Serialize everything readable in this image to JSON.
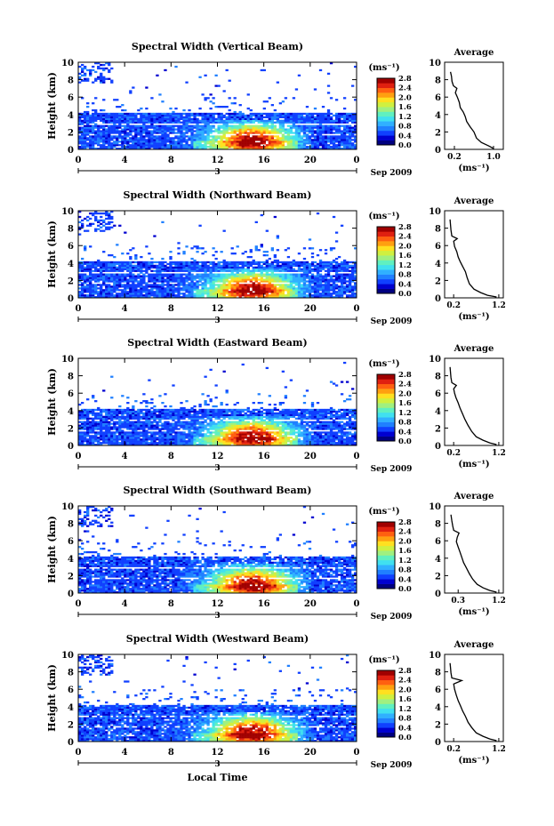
{
  "figure": {
    "xlabel": "Local Time",
    "date_label": "Sep 2009",
    "day_label": "3",
    "unit_label": "(ms⁻¹)"
  },
  "chart_data": [
    {
      "type": "heatmap",
      "title": "Spectral Width (Vertical Beam)",
      "ylabel": "Height (km)",
      "xlim": [
        0,
        24
      ],
      "ylim": [
        0,
        10
      ],
      "xticks": [
        "0",
        "4",
        "8",
        "12",
        "16",
        "20",
        "0"
      ],
      "yticks": [
        "0",
        "2",
        "4",
        "6",
        "8",
        "10"
      ],
      "colorbar": {
        "ticks": [
          "0.0",
          "0.4",
          "0.8",
          "1.2",
          "1.6",
          "2.0",
          "2.4",
          "2.8"
        ],
        "range": [
          0,
          2.8
        ]
      },
      "profile": {
        "title": "Average",
        "xlabel": "(ms⁻¹)",
        "xticks": [
          "0.2",
          "1.0"
        ],
        "xlim": [
          0.0,
          1.2
        ],
        "yticks": [
          "0",
          "2",
          "4",
          "6",
          "8",
          "10"
        ],
        "points": [
          [
            1.0,
            0.1
          ],
          [
            0.9,
            0.4
          ],
          [
            0.75,
            0.8
          ],
          [
            0.65,
            1.3
          ],
          [
            0.6,
            2
          ],
          [
            0.52,
            2.6
          ],
          [
            0.45,
            3.2
          ],
          [
            0.42,
            3.8
          ],
          [
            0.38,
            4.3
          ],
          [
            0.32,
            4.8
          ],
          [
            0.3,
            5.4
          ],
          [
            0.26,
            6.0
          ],
          [
            0.22,
            6.5
          ],
          [
            0.25,
            7.0
          ],
          [
            0.18,
            7.3
          ],
          [
            0.15,
            7.8
          ],
          [
            0.14,
            8.4
          ],
          [
            0.12,
            8.9
          ]
        ]
      }
    },
    {
      "type": "heatmap",
      "title": "Spectral Width (Northward Beam)",
      "ylabel": "Height (km)",
      "xlim": [
        0,
        24
      ],
      "ylim": [
        0,
        10
      ],
      "xticks": [
        "0",
        "4",
        "8",
        "12",
        "16",
        "20",
        "0"
      ],
      "yticks": [
        "0",
        "2",
        "4",
        "6",
        "8",
        "10"
      ],
      "colorbar": {
        "ticks": [
          "0.0",
          "0.4",
          "0.8",
          "1.2",
          "1.6",
          "2.0",
          "2.4",
          "2.8"
        ],
        "range": [
          0,
          2.8
        ]
      },
      "profile": {
        "title": "Average",
        "xlabel": "(ms⁻¹)",
        "xticks": [
          "0.2",
          "1.2"
        ],
        "xlim": [
          0.0,
          1.3
        ],
        "yticks": [
          "0",
          "2",
          "4",
          "6",
          "8",
          "10"
        ],
        "points": [
          [
            1.15,
            0.1
          ],
          [
            0.95,
            0.3
          ],
          [
            0.8,
            0.6
          ],
          [
            0.65,
            1.0
          ],
          [
            0.55,
            1.6
          ],
          [
            0.5,
            2.3
          ],
          [
            0.46,
            3.0
          ],
          [
            0.4,
            3.6
          ],
          [
            0.34,
            4.2
          ],
          [
            0.3,
            4.7
          ],
          [
            0.27,
            5.3
          ],
          [
            0.22,
            5.9
          ],
          [
            0.2,
            6.5
          ],
          [
            0.28,
            6.8
          ],
          [
            0.16,
            7.1
          ],
          [
            0.14,
            7.8
          ],
          [
            0.13,
            8.4
          ],
          [
            0.12,
            9.0
          ]
        ]
      }
    },
    {
      "type": "heatmap",
      "title": "Spectral Width (Eastward Beam)",
      "ylabel": "Height (km)",
      "xlim": [
        0,
        24
      ],
      "ylim": [
        0,
        10
      ],
      "xticks": [
        "0",
        "4",
        "8",
        "12",
        "16",
        "20",
        "0"
      ],
      "yticks": [
        "0",
        "2",
        "4",
        "6",
        "8",
        "10"
      ],
      "colorbar": {
        "ticks": [
          "0.0",
          "0.4",
          "0.8",
          "1.2",
          "1.6",
          "2.0",
          "2.4",
          "2.8"
        ],
        "range": [
          0,
          2.8
        ]
      },
      "profile": {
        "title": "Average",
        "xlabel": "(ms⁻¹)",
        "xticks": [
          "0.2",
          "1.2"
        ],
        "xlim": [
          0.0,
          1.3
        ],
        "yticks": [
          "0",
          "2",
          "4",
          "6",
          "8",
          "10"
        ],
        "points": [
          [
            1.15,
            0.1
          ],
          [
            1.0,
            0.3
          ],
          [
            0.85,
            0.6
          ],
          [
            0.7,
            1.0
          ],
          [
            0.6,
            1.6
          ],
          [
            0.52,
            2.3
          ],
          [
            0.45,
            3.0
          ],
          [
            0.4,
            3.6
          ],
          [
            0.34,
            4.3
          ],
          [
            0.3,
            4.9
          ],
          [
            0.25,
            5.5
          ],
          [
            0.22,
            6.0
          ],
          [
            0.2,
            6.5
          ],
          [
            0.26,
            6.9
          ],
          [
            0.16,
            7.2
          ],
          [
            0.14,
            7.8
          ],
          [
            0.13,
            8.4
          ],
          [
            0.12,
            9.0
          ]
        ]
      }
    },
    {
      "type": "heatmap",
      "title": "Spectral Width (Southward Beam)",
      "ylabel": "Height (km)",
      "xlim": [
        0,
        24
      ],
      "ylim": [
        0,
        10
      ],
      "xticks": [
        "0",
        "4",
        "8",
        "12",
        "16",
        "20",
        "0"
      ],
      "yticks": [
        "0",
        "2",
        "4",
        "6",
        "8",
        "10"
      ],
      "colorbar": {
        "ticks": [
          "0.0",
          "0.4",
          "0.8",
          "1.2",
          "1.6",
          "2.0",
          "2.4",
          "2.8"
        ],
        "range": [
          0,
          2.8
        ]
      },
      "profile": {
        "title": "Average",
        "xlabel": "(ms⁻¹)",
        "xticks": [
          "0.3",
          "1.2"
        ],
        "xlim": [
          0.0,
          1.3
        ],
        "yticks": [
          "0",
          "2",
          "4",
          "6",
          "8",
          "10"
        ],
        "points": [
          [
            1.15,
            0.1
          ],
          [
            1.0,
            0.3
          ],
          [
            0.85,
            0.6
          ],
          [
            0.72,
            1.0
          ],
          [
            0.62,
            1.6
          ],
          [
            0.55,
            2.2
          ],
          [
            0.48,
            2.9
          ],
          [
            0.42,
            3.5
          ],
          [
            0.38,
            4.1
          ],
          [
            0.34,
            4.7
          ],
          [
            0.3,
            5.3
          ],
          [
            0.26,
            5.9
          ],
          [
            0.28,
            6.4
          ],
          [
            0.32,
            6.9
          ],
          [
            0.2,
            7.2
          ],
          [
            0.18,
            7.7
          ],
          [
            0.16,
            8.3
          ],
          [
            0.14,
            9.0
          ]
        ]
      }
    },
    {
      "type": "heatmap",
      "title": "Spectral Width (Westward Beam)",
      "ylabel": "Height (km)",
      "xlim": [
        0,
        24
      ],
      "ylim": [
        0,
        10
      ],
      "xticks": [
        "0",
        "4",
        "8",
        "12",
        "16",
        "20",
        "0"
      ],
      "yticks": [
        "0",
        "2",
        "4",
        "6",
        "8",
        "10"
      ],
      "colorbar": {
        "ticks": [
          "0.0",
          "0.4",
          "0.8",
          "1.2",
          "1.6",
          "2.0",
          "2.4",
          "2.8"
        ],
        "range": [
          0,
          2.8
        ]
      },
      "profile": {
        "title": "Average",
        "xlabel": "(ms⁻¹)",
        "xticks": [
          "0.2",
          "1.2"
        ],
        "xlim": [
          0.0,
          1.3
        ],
        "yticks": [
          "0",
          "2",
          "4",
          "6",
          "8",
          "10"
        ],
        "points": [
          [
            1.15,
            0.1
          ],
          [
            1.0,
            0.3
          ],
          [
            0.85,
            0.6
          ],
          [
            0.7,
            1.0
          ],
          [
            0.6,
            1.6
          ],
          [
            0.52,
            2.2
          ],
          [
            0.46,
            2.9
          ],
          [
            0.4,
            3.5
          ],
          [
            0.35,
            4.1
          ],
          [
            0.3,
            4.7
          ],
          [
            0.26,
            5.3
          ],
          [
            0.22,
            6.0
          ],
          [
            0.2,
            6.6
          ],
          [
            0.38,
            7.0
          ],
          [
            0.16,
            7.3
          ],
          [
            0.14,
            7.9
          ],
          [
            0.13,
            8.5
          ],
          [
            0.12,
            9.0
          ]
        ]
      }
    }
  ]
}
